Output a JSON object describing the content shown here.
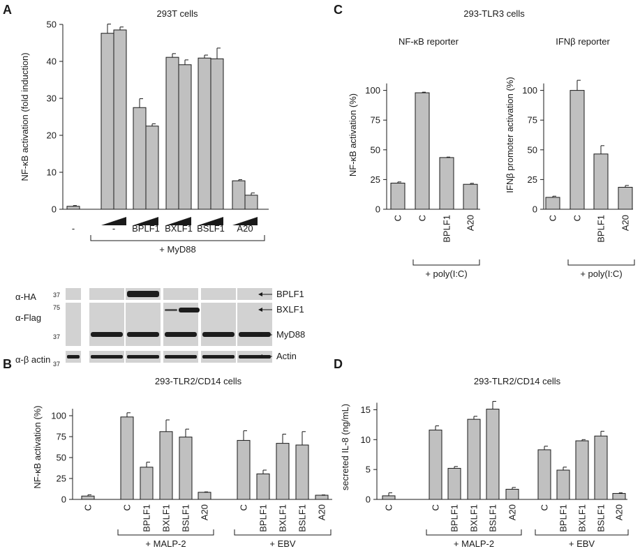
{
  "panels": {
    "A": {
      "letter": "A",
      "title": "293T cells"
    },
    "B": {
      "letter": "B",
      "title": "293-TLR2/CD14 cells"
    },
    "C": {
      "letter": "C",
      "title": "293-TLR3 cells"
    },
    "D": {
      "letter": "D",
      "title": "293-TLR2/CD14 cells"
    }
  },
  "blot": {
    "rows": [
      "α-HA",
      "α-Flag",
      "α-β actin"
    ],
    "markers": [
      "37",
      "75",
      "37",
      "37"
    ],
    "proteins": [
      "BPLF1",
      "BXLF1",
      "MyD88",
      "Actin"
    ]
  },
  "chart_data": [
    {
      "id": "A",
      "type": "bar",
      "title": "293T cells",
      "ylabel": "NF-κB activation (fold induction)",
      "ylim": [
        0,
        50
      ],
      "yticks": [
        0,
        10,
        20,
        30,
        40,
        50
      ],
      "groups": [
        {
          "label": "-",
          "values": [
            0.8
          ],
          "errors": [
            0.2
          ],
          "ramp": false
        },
        {
          "label": "-",
          "values": [
            47.6,
            48.5
          ],
          "errors": [
            2.5,
            0.8
          ],
          "ramp": true
        },
        {
          "label": "BPLF1",
          "values": [
            27.5,
            22.5
          ],
          "errors": [
            2.4,
            0.6
          ],
          "ramp": true
        },
        {
          "label": "BXLF1",
          "values": [
            41.1,
            39.1
          ],
          "errors": [
            1.0,
            1.3
          ],
          "ramp": true
        },
        {
          "label": "BSLF1",
          "values": [
            40.9,
            40.7
          ],
          "errors": [
            0.8,
            2.9
          ],
          "ramp": true
        },
        {
          "label": "A20",
          "values": [
            7.7,
            3.8
          ],
          "errors": [
            0.3,
            0.6
          ],
          "ramp": true
        }
      ],
      "brackets": [
        {
          "label": "+ MyD88",
          "from": 1,
          "to": 5
        }
      ]
    },
    {
      "id": "C1",
      "type": "bar",
      "title": "NF-κB reporter",
      "ylabel": "NF-κB activation (%)",
      "ylim": [
        0,
        125
      ],
      "yticks": [
        0,
        25,
        50,
        75,
        100
      ],
      "groups": [
        {
          "label": "C",
          "values": [
            22
          ],
          "errors": [
            1
          ]
        },
        {
          "label": "C",
          "values": [
            98
          ],
          "errors": [
            0.5
          ]
        },
        {
          "label": "BPLF1",
          "values": [
            43.5
          ],
          "errors": [
            0.4
          ]
        },
        {
          "label": "A20",
          "values": [
            21
          ],
          "errors": [
            0.8
          ]
        }
      ],
      "brackets": [
        {
          "label": "+ poly(I:C)",
          "from": 1,
          "to": 3
        }
      ]
    },
    {
      "id": "C2",
      "type": "bar",
      "title": "IFNβ reporter",
      "ylabel": "IFNβ promoter activation (%)",
      "ylim": [
        0,
        125
      ],
      "yticks": [
        0,
        25,
        50,
        75,
        100
      ],
      "groups": [
        {
          "label": "C",
          "values": [
            10
          ],
          "errors": [
            1
          ]
        },
        {
          "label": "C",
          "values": [
            100
          ],
          "errors": [
            8.5
          ]
        },
        {
          "label": "BPLF1",
          "values": [
            46.5
          ],
          "errors": [
            7
          ]
        },
        {
          "label": "A20",
          "values": [
            18.5
          ],
          "errors": [
            1.5
          ]
        }
      ],
      "brackets": [
        {
          "label": "+ poly(I:C)",
          "from": 1,
          "to": 3
        }
      ]
    },
    {
      "id": "B",
      "type": "bar",
      "title": "293-TLR2/CD14 cells",
      "ylabel": "NF-κB activation (%)",
      "ylim": [
        0,
        125
      ],
      "yticks": [
        0,
        25,
        50,
        75,
        100
      ],
      "groups": [
        {
          "label": "C",
          "values": [
            4
          ],
          "errors": [
            1.5
          ]
        },
        {
          "label": "C",
          "values": [
            98.5
          ],
          "errors": [
            5
          ]
        },
        {
          "label": "BPLF1",
          "values": [
            38.5
          ],
          "errors": [
            6
          ]
        },
        {
          "label": "BXLF1",
          "values": [
            81
          ],
          "errors": [
            14
          ]
        },
        {
          "label": "BSLF1",
          "values": [
            74.5
          ],
          "errors": [
            9.5
          ]
        },
        {
          "label": "A20",
          "values": [
            8.5
          ],
          "errors": [
            0.5
          ]
        },
        {
          "label": "C",
          "values": [
            70.5
          ],
          "errors": [
            11.5
          ]
        },
        {
          "label": "BPLF1",
          "values": [
            30.5
          ],
          "errors": [
            4.5
          ]
        },
        {
          "label": "BXLF1",
          "values": [
            67
          ],
          "errors": [
            11
          ]
        },
        {
          "label": "BSLF1",
          "values": [
            65
          ],
          "errors": [
            16
          ]
        },
        {
          "label": "A20",
          "values": [
            5
          ],
          "errors": [
            0.4
          ]
        }
      ],
      "brackets": [
        {
          "label": "+ MALP-2",
          "from": 1,
          "to": 5
        },
        {
          "label": "+ EBV",
          "from": 6,
          "to": 10
        }
      ]
    },
    {
      "id": "D",
      "type": "bar",
      "title": "293-TLR2/CD14 cells",
      "ylabel": "secreted IL-8 (ng/mL)",
      "ylim": [
        0,
        17.5
      ],
      "yticks": [
        0,
        5,
        10,
        15
      ],
      "groups": [
        {
          "label": "C",
          "values": [
            0.6
          ],
          "errors": [
            0.5
          ]
        },
        {
          "label": "C",
          "values": [
            11.6
          ],
          "errors": [
            0.7
          ]
        },
        {
          "label": "BPLF1",
          "values": [
            5.2
          ],
          "errors": [
            0.3
          ]
        },
        {
          "label": "BXLF1",
          "values": [
            13.4
          ],
          "errors": [
            0.5
          ]
        },
        {
          "label": "BSLF1",
          "values": [
            15.1
          ],
          "errors": [
            1.3
          ]
        },
        {
          "label": "A20",
          "values": [
            1.7
          ],
          "errors": [
            0.3
          ]
        },
        {
          "label": "C",
          "values": [
            8.3
          ],
          "errors": [
            0.6
          ]
        },
        {
          "label": "BPLF1",
          "values": [
            4.9
          ],
          "errors": [
            0.5
          ]
        },
        {
          "label": "BXLF1",
          "values": [
            9.8
          ],
          "errors": [
            0.2
          ]
        },
        {
          "label": "BSLF1",
          "values": [
            10.6
          ],
          "errors": [
            0.8
          ]
        },
        {
          "label": "A20",
          "values": [
            1.0
          ],
          "errors": [
            0.1
          ]
        }
      ],
      "brackets": [
        {
          "label": "+ MALP-2",
          "from": 1,
          "to": 5
        },
        {
          "label": "+ EBV",
          "from": 6,
          "to": 10
        }
      ]
    }
  ]
}
